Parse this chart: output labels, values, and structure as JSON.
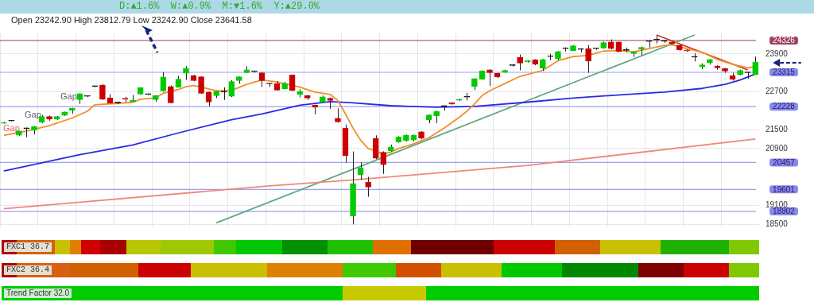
{
  "chart_data": {
    "type": "candlestick",
    "title": "D:▲1.6%  W:▲0.9%  M:▼1.6%  Y:▲29.0%",
    "subtitle": "Open 23242.90 High 23812.79 Low 23242.90 Close 23641.58",
    "categories": [
      null,
      null,
      null,
      null,
      null,
      null,
      null,
      null,
      null,
      null,
      null,
      null,
      null,
      null,
      null,
      null,
      null,
      null,
      null,
      null,
      null,
      null,
      null,
      null,
      null,
      null,
      null,
      null,
      null,
      null,
      null,
      null,
      null,
      null,
      null,
      null,
      null,
      null,
      null,
      null,
      null,
      null,
      null,
      null,
      null,
      null,
      null,
      null,
      null,
      null,
      null,
      null,
      null,
      null,
      null,
      null,
      null,
      null,
      null,
      null,
      null,
      null,
      null,
      null,
      null,
      null,
      null,
      null,
      null,
      null,
      null,
      null,
      null,
      null,
      null,
      null,
      null,
      null,
      null,
      null,
      null,
      null,
      null,
      null,
      null,
      null,
      null,
      null,
      null,
      null,
      null,
      null,
      null,
      null,
      null,
      null,
      null,
      null,
      null,
      null
    ],
    "ohlc": [
      [
        21700,
        21745,
        21690,
        21722
      ],
      [
        21775,
        21800,
        21760,
        21775
      ],
      [
        21317,
        21460,
        21300,
        21454
      ],
      [
        21530,
        21560,
        21260,
        21530
      ],
      [
        21474,
        21610,
        21350,
        21600
      ],
      [
        21736,
        21966,
        21700,
        21912
      ],
      [
        21912,
        21940,
        21780,
        21827
      ],
      [
        21827,
        21930,
        21800,
        21912
      ],
      [
        21947,
        22070,
        21930,
        22057
      ],
      [
        22107,
        22190,
        22004,
        22176
      ],
      [
        22445,
        22650,
        22311,
        22638
      ],
      [
        22553,
        22580,
        22530,
        22553
      ],
      [
        22867,
        22900,
        22840,
        22867
      ],
      [
        22910,
        22943,
        22440,
        22460
      ],
      [
        22507,
        22620,
        22330,
        22340
      ],
      [
        22347,
        22380,
        22300,
        22347
      ],
      [
        22491,
        22540,
        22370,
        22461
      ],
      [
        22393,
        22599,
        22380,
        22439
      ],
      [
        22622,
        22840,
        22600,
        22828
      ],
      [
        22615,
        22640,
        22590,
        22615
      ],
      [
        22446,
        22590,
        22380,
        22576
      ],
      [
        22725,
        23325,
        22700,
        23165
      ],
      [
        22864,
        22900,
        22330,
        22347
      ],
      [
        22844,
        23200,
        22830,
        23096
      ],
      [
        23286,
        23505,
        23073,
        23439
      ],
      [
        23211,
        23240,
        23030,
        23050
      ],
      [
        23172,
        23190,
        22630,
        22652
      ],
      [
        22690,
        22710,
        22240,
        22369
      ],
      [
        22576,
        22720,
        22500,
        22713
      ],
      [
        22690,
        22840,
        22440,
        22690
      ],
      [
        22553,
        23070,
        22530,
        23020
      ],
      [
        23050,
        23190,
        22960,
        23172
      ],
      [
        23302,
        23505,
        23290,
        23394
      ],
      [
        23340,
        23370,
        23300,
        23340
      ],
      [
        23302,
        23320,
        22851,
        23050
      ],
      [
        22950,
        22970,
        22850,
        22950
      ],
      [
        22959,
        23040,
        22730,
        22753
      ],
      [
        22792,
        23010,
        22770,
        22959
      ],
      [
        23233,
        23250,
        22720,
        22737
      ],
      [
        22615,
        22780,
        22520,
        22706
      ],
      [
        22576,
        22600,
        22440,
        22500
      ],
      [
        22271,
        22290,
        21981,
        22210
      ],
      [
        22370,
        22580,
        22350,
        22537
      ],
      [
        22492,
        22510,
        22157,
        22424
      ],
      [
        21855,
        22172,
        21720,
        21740
      ],
      [
        21546,
        21660,
        20447,
        20669
      ],
      [
        18758,
        20806,
        18493,
        19789
      ],
      [
        20057,
        20462,
        19904,
        20286
      ],
      [
        19828,
        20000,
        19370,
        19675
      ],
      [
        21218,
        21317,
        20560,
        20591
      ],
      [
        20783,
        20810,
        20096,
        20386
      ],
      [
        20820,
        21020,
        20800,
        20950
      ],
      [
        21104,
        21290,
        21080,
        21264
      ],
      [
        21149,
        21340,
        21120,
        21317
      ],
      [
        21170,
        21340,
        21120,
        21317
      ],
      [
        21431,
        21450,
        21190,
        21225
      ],
      [
        21813,
        21980,
        21700,
        21966
      ],
      [
        21928,
        22100,
        21700,
        22081
      ],
      [
        22233,
        22260,
        22100,
        22233
      ],
      [
        22347,
        22370,
        22290,
        22309
      ],
      [
        22427,
        22480,
        22400,
        22461
      ],
      [
        22530,
        22660,
        22420,
        22530
      ],
      [
        22866,
        23130,
        22750,
        23119
      ],
      [
        23096,
        23380,
        23080,
        23363
      ],
      [
        23394,
        23410,
        22883,
        23302
      ],
      [
        23287,
        23300,
        23130,
        23164
      ],
      [
        23317,
        23400,
        23300,
        23378
      ],
      [
        23531,
        23560,
        23500,
        23531
      ],
      [
        23790,
        23880,
        23378,
        23607
      ],
      [
        23645,
        23700,
        23620,
        23683
      ],
      [
        23711,
        23730,
        23540,
        23573
      ],
      [
        23440,
        23735,
        23363,
        23721
      ],
      [
        23813,
        23900,
        23700,
        23813
      ],
      [
        23744,
        23990,
        23700,
        23973
      ],
      [
        24065,
        24110,
        23980,
        24065
      ],
      [
        24004,
        24180,
        23990,
        24156
      ],
      [
        24042,
        24070,
        23950,
        24042
      ],
      [
        24065,
        24180,
        23302,
        23668
      ],
      [
        24065,
        24090,
        24030,
        24065
      ],
      [
        24088,
        24290,
        24060,
        24256
      ],
      [
        24279,
        24360,
        24040,
        24065
      ],
      [
        24279,
        24290,
        23950,
        23973
      ],
      [
        24011,
        24100,
        23950,
        24011
      ],
      [
        23912,
        23980,
        23800,
        23966
      ],
      [
        24057,
        24130,
        23850,
        24110
      ],
      [
        24293,
        24330,
        24100,
        24293
      ],
      [
        24346,
        24500,
        24230,
        24346
      ],
      [
        24300,
        24340,
        24250,
        24300
      ],
      [
        24279,
        24300,
        24200,
        24218
      ],
      [
        24179,
        24190,
        24000,
        24027
      ],
      [
        24027,
        24040,
        23970,
        23989
      ],
      [
        23798,
        23920,
        23660,
        23798
      ],
      [
        23492,
        23600,
        23420,
        23554
      ],
      [
        23622,
        23735,
        23560,
        23721
      ],
      [
        23515,
        23540,
        23400,
        23454
      ],
      [
        23439,
        23450,
        23300,
        23355
      ],
      [
        23203,
        23300,
        23050,
        23096
      ],
      [
        23241,
        23400,
        23220,
        23378
      ],
      [
        23302,
        23320,
        23110,
        23302
      ],
      [
        23242.9,
        23812.79,
        23242.9,
        23641.58
      ]
    ],
    "colors": [
      "#00cc00",
      "#000000",
      "#00cc00",
      "#000000",
      "#00cc00",
      "#00cc00",
      "#cc0000",
      "#00cc00",
      "#00cc00",
      "#00cc00",
      "#00cc00",
      "#000000",
      "#000000",
      "#cc0000",
      "#cc0000",
      "#000000",
      "#cc0000",
      "#00cc00",
      "#00cc00",
      "#000000",
      "#00cc00",
      "#00cc00",
      "#cc0000",
      "#00cc00",
      "#00cc00",
      "#cc0000",
      "#cc0000",
      "#cc0000",
      "#00cc00",
      "#000000",
      "#00cc00",
      "#00cc00",
      "#00cc00",
      "#000000",
      "#cc0000",
      "#000000",
      "#cc0000",
      "#00cc00",
      "#cc0000",
      "#00cc00",
      "#cc0000",
      "#cc0000",
      "#00cc00",
      "#cc0000",
      "#cc0000",
      "#cc0000",
      "#00cc00",
      "#00cc00",
      "#cc0000",
      "#cc0000",
      "#cc0000",
      "#00cc00",
      "#00cc00",
      "#00cc00",
      "#00cc00",
      "#cc0000",
      "#00cc00",
      "#00cc00",
      "#000000",
      "#cc0000",
      "#00cc00",
      "#000000",
      "#00cc00",
      "#00cc00",
      "#cc0000",
      "#cc0000",
      "#00cc00",
      "#000000",
      "#cc0000",
      "#00cc00",
      "#cc0000",
      "#00cc00",
      "#000000",
      "#00cc00",
      "#000000",
      "#00cc00",
      "#000000",
      "#cc0000",
      "#000000",
      "#00cc00",
      "#cc0000",
      "#cc0000",
      "#000000",
      "#00cc00",
      "#00cc00",
      "#000000",
      "#000000",
      "#000000",
      "#cc0000",
      "#cc0000",
      "#cc0000",
      "#000000",
      "#00cc00",
      "#00cc00",
      "#cc0000",
      "#cc0000",
      "#cc0000",
      "#00cc00",
      "#000000",
      "#00cc00"
    ],
    "series": [
      {
        "type": "line",
        "color": "#f0902a",
        "values": [
          21317,
          null,
          null,
          21454,
          null,
          null,
          21622,
          null,
          null,
          21866,
          null,
          22081,
          22287,
          null,
          null,
          22332,
          null,
          22363,
          22462,
          null,
          22500,
          22652,
          null,
          22767,
          22859,
          22897,
          22844,
          null,
          22729,
          null,
          22740,
          null,
          22935,
          null,
          23073,
          null,
          23011,
          null,
          null,
          22844,
          null,
          22690,
          null,
          22614,
          22424,
          21997,
          21546,
          21165,
          20897,
          20820,
          20721,
          20783,
          20897,
          null,
          21050,
          null,
          21241,
          null,
          21546,
          null,
          21889,
          22081,
          22311,
          22576,
          22729,
          null,
          22958,
          null,
          23188,
          23250,
          null,
          23378,
          null,
          23683,
          null,
          23813,
          null,
          23852,
          null,
          23989,
          null,
          24004,
          null,
          23966,
          null,
          24065,
          null,
          24171,
          24187,
          null,
          24065,
          null,
          23950,
          null,
          23721,
          null,
          23569,
          null,
          23454,
          23492
        ]
      },
      {
        "type": "line",
        "color": "#2a2ae0",
        "values": [
          20188,
          null,
          null,
          null,
          null,
          null,
          null,
          null,
          null,
          null,
          20705,
          null,
          null,
          null,
          null,
          null,
          null,
          21012,
          null,
          null,
          null,
          null,
          null,
          21393,
          null,
          null,
          null,
          null,
          null,
          null,
          21813,
          null,
          null,
          null,
          21997,
          null,
          null,
          null,
          null,
          22271,
          null,
          null,
          null,
          22386,
          null,
          null,
          22347,
          null,
          null,
          null,
          null,
          22256,
          null,
          null,
          null,
          null,
          null,
          22210,
          null,
          null,
          null,
          null,
          22233,
          null,
          null,
          null,
          null,
          null,
          null,
          22370,
          null,
          null,
          null,
          null,
          null,
          22500,
          null,
          null,
          null,
          null,
          null,
          null,
          22614,
          null,
          null,
          null,
          null,
          22690,
          null,
          null,
          null,
          null,
          22805,
          null,
          null,
          22935,
          null,
          23073,
          null,
          23263
        ]
      },
      {
        "type": "line",
        "color": "#f08878",
        "values": [
          18988,
          null,
          null,
          null,
          null,
          null,
          null,
          null,
          null,
          null,
          null,
          null,
          null,
          null,
          null,
          null,
          null,
          null,
          null,
          null,
          null,
          null,
          null,
          null,
          null,
          null,
          null,
          null,
          null,
          null,
          null,
          null,
          null,
          null,
          null,
          19714,
          null,
          null,
          null,
          null,
          null,
          null,
          null,
          null,
          null,
          null,
          19904,
          null,
          null,
          null,
          null,
          null,
          null,
          null,
          null,
          null,
          null,
          null,
          null,
          null,
          null,
          null,
          null,
          null,
          null,
          null,
          null,
          null,
          null,
          20362,
          null,
          null,
          null,
          null,
          null,
          null,
          null,
          null,
          null,
          null,
          null,
          null,
          null,
          null,
          null,
          null,
          null,
          null,
          null,
          null,
          null,
          null,
          null,
          null,
          null,
          null,
          null,
          null,
          null,
          21202
        ]
      },
      {
        "type": "line",
        "color": "#5fa882",
        "values": [
          null,
          null,
          null,
          null,
          null,
          null,
          null,
          null,
          null,
          null,
          null,
          null,
          null,
          null,
          null,
          null,
          null,
          null,
          null,
          null,
          null,
          null,
          null,
          null,
          null,
          null,
          null,
          null,
          18540,
          null,
          null,
          null,
          null,
          null,
          null,
          null,
          null,
          null,
          null,
          null,
          null,
          null,
          null,
          null,
          null,
          null,
          null,
          null,
          null,
          null,
          null,
          null,
          null,
          null,
          null,
          null,
          null,
          null,
          null,
          null,
          null,
          null,
          null,
          null,
          null,
          null,
          null,
          null,
          null,
          null,
          null,
          null,
          null,
          null,
          null,
          null,
          null,
          null,
          null,
          null,
          null,
          null,
          null,
          null,
          null,
          null,
          null,
          null,
          null,
          null,
          null,
          24500,
          null,
          null,
          null,
          null,
          null,
          null,
          null,
          null
        ]
      },
      {
        "type": "line",
        "color": "#e03020",
        "values": [
          null,
          null,
          null,
          null,
          null,
          null,
          null,
          null,
          null,
          null,
          null,
          null,
          null,
          null,
          null,
          null,
          null,
          null,
          null,
          null,
          null,
          null,
          null,
          null,
          null,
          null,
          null,
          null,
          null,
          null,
          null,
          null,
          null,
          null,
          null,
          null,
          null,
          null,
          null,
          null,
          null,
          null,
          null,
          null,
          null,
          null,
          null,
          null,
          null,
          null,
          null,
          null,
          null,
          null,
          null,
          null,
          null,
          null,
          null,
          null,
          null,
          null,
          null,
          null,
          null,
          null,
          null,
          null,
          null,
          null,
          null,
          null,
          null,
          null,
          null,
          null,
          null,
          null,
          null,
          null,
          null,
          null,
          null,
          null,
          null,
          null,
          24500,
          null,
          null,
          null,
          null,
          null,
          null,
          null,
          null,
          null,
          null,
          null,
          23390,
          null
        ]
      }
    ],
    "ylim": [
      18400,
      24550
    ],
    "yticks": [
      18500,
      19100,
      20900,
      21500,
      22700,
      23900
    ],
    "ref_lines": [
      {
        "axis": "y",
        "value": 24326,
        "label": "24326",
        "color": "#a04060"
      },
      {
        "axis": "y",
        "value": 23315,
        "label": "23315",
        "color": "#8888ee"
      },
      {
        "axis": "y",
        "value": 22228,
        "label": "22228",
        "color": "#8888ee"
      },
      {
        "axis": "y",
        "value": 20457,
        "label": "20457",
        "color": "#8888ee"
      },
      {
        "axis": "y",
        "value": 19601,
        "label": "19601",
        "color": "#8888ee"
      },
      {
        "axis": "y",
        "value": 18902,
        "label": "18902",
        "color": "#8888ee"
      }
    ],
    "annotations": [
      "Gap",
      "Gap",
      "Gap",
      "FXC1 36.7",
      "FXC2 36.4",
      "Trend Factor 32.0"
    ],
    "grid": true,
    "tick_labels": "y",
    "marker": "none"
  }
}
